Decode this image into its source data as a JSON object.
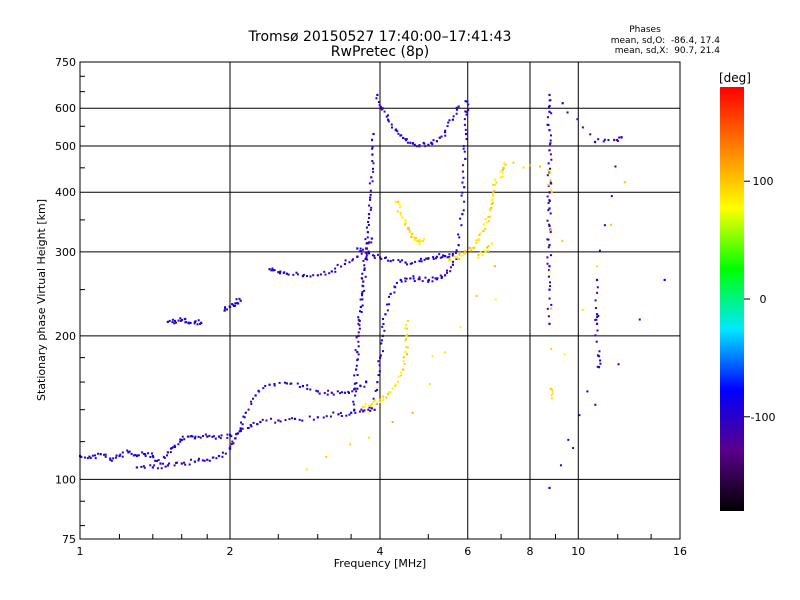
{
  "chart_data": {
    "type": "scatter",
    "title": "Tromsø 20150527 17:40:00–17:41:43",
    "subtitle": "RwPretec (8p)",
    "xlabel": "Frequency [MHz]",
    "ylabel": "Stationary phase Virtual Height [km]",
    "x_scale": "log",
    "y_scale": "log",
    "xlim": [
      1,
      16
    ],
    "ylim": [
      75,
      750
    ],
    "x_ticks": [
      1,
      2,
      4,
      6,
      8,
      10,
      16
    ],
    "y_ticks": [
      75,
      100,
      200,
      300,
      400,
      500,
      600,
      750
    ],
    "grid": true,
    "stats_panel": {
      "title": "Phases",
      "line1": "mean, sd,O:  -86.4, 17.4",
      "line2": "mean, sd,X:  90.7, 21.4"
    },
    "colorbar": {
      "label": "[deg]",
      "range": [
        -180,
        180
      ],
      "ticks": [
        100,
        0,
        -100
      ],
      "colormap": [
        "#000000",
        "#5a008a",
        "#0000ff",
        "#00e8ff",
        "#00ff00",
        "#ffff00",
        "#ff8000",
        "#ff0000"
      ]
    },
    "series": [
      {
        "mode": "O",
        "phase_deg": -100,
        "traces": [
          {
            "points": [
              [
                1.0,
                112
              ],
              [
                1.05,
                111
              ],
              [
                1.1,
                113
              ],
              [
                1.15,
                110
              ],
              [
                1.2,
                112
              ],
              [
                1.25,
                114
              ],
              [
                1.3,
                112
              ],
              [
                1.35,
                113
              ],
              [
                1.4,
                112
              ],
              [
                1.45,
                108
              ],
              [
                1.5,
                114
              ],
              [
                1.55,
                117
              ],
              [
                1.6,
                121
              ],
              [
                1.65,
                123
              ],
              [
                1.7,
                122
              ],
              [
                1.8,
                123
              ],
              [
                1.9,
                123
              ],
              [
                2.0,
                124
              ],
              [
                2.1,
                127
              ],
              [
                2.2,
                130
              ],
              [
                2.3,
                132
              ],
              [
                2.5,
                133
              ],
              [
                2.7,
                134
              ],
              [
                3.0,
                135
              ],
              [
                3.3,
                137
              ],
              [
                3.5,
                138
              ],
              [
                3.7,
                139
              ],
              [
                3.85,
                141
              ]
            ]
          },
          {
            "points": [
              [
                1.3,
                106
              ],
              [
                1.4,
                106
              ],
              [
                1.5,
                107
              ],
              [
                1.6,
                108
              ],
              [
                1.7,
                109
              ],
              [
                1.8,
                110
              ],
              [
                1.9,
                112
              ],
              [
                2.0,
                116
              ],
              [
                2.05,
                122
              ],
              [
                2.1,
                128
              ],
              [
                2.15,
                138
              ],
              [
                2.25,
                150
              ],
              [
                2.4,
                158
              ],
              [
                2.6,
                159
              ],
              [
                2.8,
                157
              ],
              [
                3.0,
                153
              ],
              [
                3.2,
                152
              ],
              [
                3.4,
                152
              ],
              [
                3.6,
                155
              ],
              [
                3.75,
                160
              ]
            ]
          },
          {
            "points": [
              [
                1.5,
                214
              ],
              [
                1.55,
                215
              ],
              [
                1.6,
                216
              ],
              [
                1.65,
                213
              ],
              [
                1.7,
                214
              ],
              [
                1.75,
                213
              ]
            ]
          },
          {
            "points": [
              [
                1.95,
                226
              ],
              [
                2.0,
                230
              ],
              [
                2.05,
                234
              ],
              [
                2.1,
                237
              ]
            ]
          },
          {
            "points": [
              [
                2.4,
                276
              ],
              [
                2.5,
                272
              ],
              [
                2.6,
                270
              ],
              [
                2.8,
                267
              ],
              [
                3.0,
                268
              ],
              [
                3.2,
                273
              ],
              [
                3.4,
                283
              ],
              [
                3.6,
                293
              ],
              [
                3.75,
                305
              ],
              [
                3.85,
                320
              ]
            ]
          },
          {
            "points": [
              [
                3.55,
                140
              ],
              [
                3.56,
                155
              ],
              [
                3.58,
                170
              ],
              [
                3.6,
                185
              ],
              [
                3.62,
                200
              ],
              [
                3.64,
                215
              ],
              [
                3.66,
                230
              ],
              [
                3.68,
                245
              ],
              [
                3.7,
                260
              ],
              [
                3.72,
                275
              ],
              [
                3.74,
                290
              ],
              [
                3.76,
                305
              ],
              [
                3.78,
                330
              ],
              [
                3.8,
                360
              ],
              [
                3.82,
                390
              ],
              [
                3.84,
                430
              ],
              [
                3.86,
                480
              ],
              [
                3.88,
                530
              ]
            ]
          },
          {
            "points": [
              [
                3.9,
                140
              ],
              [
                3.95,
                160
              ],
              [
                4.0,
                180
              ],
              [
                4.05,
                200
              ],
              [
                4.1,
                222
              ],
              [
                4.2,
                245
              ],
              [
                4.4,
                262
              ],
              [
                4.6,
                264
              ],
              [
                4.8,
                263
              ],
              [
                5.0,
                261
              ],
              [
                5.2,
                263
              ],
              [
                5.4,
                268
              ],
              [
                5.6,
                282
              ],
              [
                5.75,
                310
              ],
              [
                5.85,
                360
              ],
              [
                5.9,
                410
              ],
              [
                5.93,
                470
              ],
              [
                5.95,
                530
              ],
              [
                5.97,
                590
              ],
              [
                5.98,
                620
              ]
            ]
          },
          {
            "points": [
              [
                3.6,
                305
              ],
              [
                3.8,
                298
              ],
              [
                4.0,
                292
              ],
              [
                4.2,
                287
              ],
              [
                4.5,
                285
              ],
              [
                4.8,
                287
              ],
              [
                5.0,
                291
              ],
              [
                5.2,
                293
              ],
              [
                5.4,
                294
              ],
              [
                5.6,
                295
              ]
            ]
          },
          {
            "points": [
              [
                3.95,
                640
              ],
              [
                4.05,
                600
              ],
              [
                4.15,
                568
              ],
              [
                4.3,
                540
              ],
              [
                4.45,
                520
              ],
              [
                4.6,
                508
              ],
              [
                4.8,
                502
              ],
              [
                5.0,
                503
              ],
              [
                5.2,
                512
              ],
              [
                5.4,
                535
              ],
              [
                5.6,
                568
              ],
              [
                5.75,
                605
              ]
            ]
          },
          {
            "points": [
              [
                8.75,
                640
              ],
              [
                8.75,
                590
              ],
              [
                8.75,
                540
              ],
              [
                8.75,
                490
              ],
              [
                8.75,
                440
              ],
              [
                8.75,
                400
              ],
              [
                8.75,
                370
              ],
              [
                8.75,
                340
              ],
              [
                8.75,
                310
              ],
              [
                8.75,
                280
              ],
              [
                8.75,
                250
              ],
              [
                8.75,
                212
              ]
            ]
          },
          {
            "points": [
              [
                9.3,
                615
              ],
              [
                10.8,
                510
              ],
              [
                11.8,
                515
              ],
              [
                12.2,
                522
              ],
              [
                10.9,
                262
              ],
              [
                10.9,
                222
              ],
              [
                10.9,
                212
              ],
              [
                10.95,
                182
              ],
              [
                11.0,
                172
              ],
              [
                8.75,
                96
              ],
              [
                14.9,
                262
              ]
            ]
          }
        ]
      },
      {
        "mode": "X",
        "phase_deg": 90,
        "traces": [
          {
            "points": [
              [
                3.7,
                142
              ],
              [
                3.85,
                144
              ],
              [
                4.0,
                147
              ],
              [
                4.15,
                151
              ],
              [
                4.3,
                158
              ],
              [
                4.45,
                170
              ],
              [
                4.5,
                185
              ],
              [
                4.52,
                200
              ],
              [
                4.55,
                215
              ]
            ]
          },
          {
            "points": [
              [
                4.3,
                382
              ],
              [
                4.4,
                362
              ],
              [
                4.5,
                345
              ],
              [
                4.6,
                330
              ],
              [
                4.7,
                318
              ],
              [
                4.8,
                312
              ],
              [
                4.9,
                320
              ]
            ]
          },
          {
            "points": [
              [
                5.5,
                288
              ],
              [
                5.7,
                292
              ],
              [
                5.9,
                298
              ],
              [
                6.1,
                305
              ],
              [
                6.3,
                318
              ],
              [
                6.5,
                335
              ],
              [
                6.6,
                355
              ],
              [
                6.7,
                378
              ],
              [
                6.75,
                400
              ],
              [
                6.8,
                425
              ]
            ]
          },
          {
            "points": [
              [
                6.3,
                292
              ],
              [
                6.5,
                302
              ],
              [
                6.7,
                312
              ]
            ]
          },
          {
            "points": [
              [
                7.0,
                430
              ],
              [
                7.05,
                445
              ],
              [
                7.1,
                460
              ],
              [
                8.7,
                445
              ],
              [
                8.85,
                400
              ],
              [
                8.8,
                155
              ],
              [
                8.85,
                148
              ],
              [
                12.4,
                420
              ],
              [
                2.85,
                105
              ],
              [
                4.65,
                138
              ],
              [
                6.8,
                280
              ]
            ]
          }
        ]
      }
    ]
  }
}
